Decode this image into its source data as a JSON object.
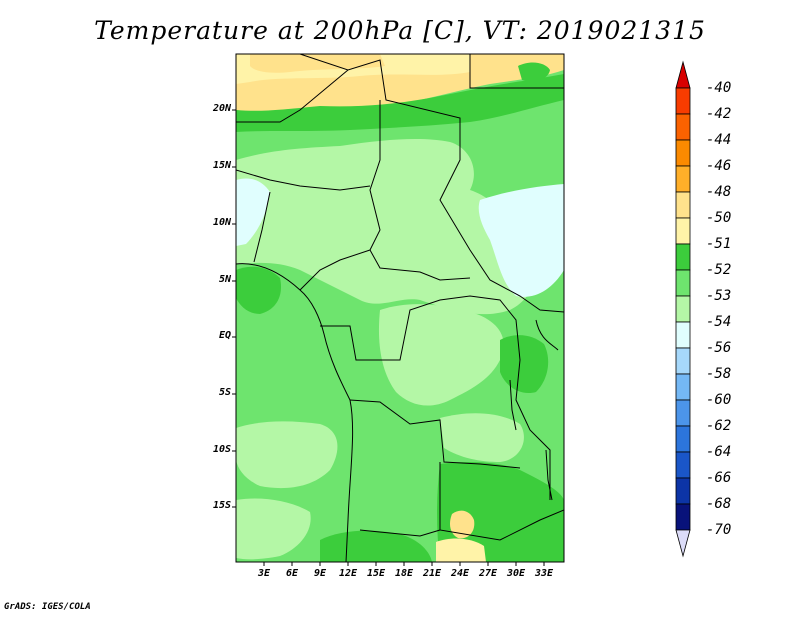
{
  "title": "Temperature at 200hPa [C], VT: 2019021315",
  "credit": "GrADS: IGES/COLA",
  "map": {
    "lat_labels": [
      "20N",
      "15N",
      "10N",
      "5N",
      "EQ",
      "5S",
      "10S",
      "15S"
    ],
    "lon_labels": [
      "3E",
      "6E",
      "9E",
      "12E",
      "15E",
      "18E",
      "21E",
      "24E",
      "27E",
      "30E",
      "33E"
    ],
    "field_colors": {
      "orange_light": "#ffe28c",
      "yellow_light": "#fff3a8",
      "green_dark": "#3ccd3c",
      "green_mid": "#6ee46e",
      "green_light": "#b4f7a6",
      "cyan_pale": "#e0fefe"
    }
  },
  "colorbar": {
    "labels": [
      "-40",
      "-42",
      "-44",
      "-46",
      "-48",
      "-50",
      "-51",
      "-52",
      "-53",
      "-54",
      "-56",
      "-58",
      "-60",
      "-62",
      "-64",
      "-66",
      "-68",
      "-70"
    ],
    "colors": [
      "#d80000",
      "#f83c00",
      "#fb6200",
      "#fb8a00",
      "#ffaf29",
      "#ffe28c",
      "#fff3a8",
      "#3ccd3c",
      "#6ee46e",
      "#b4f7a6",
      "#e0fefe",
      "#a6d8fb",
      "#74b8f5",
      "#4c95ea",
      "#2c75dc",
      "#1a56c8",
      "#0c34a6",
      "#08127a",
      "#dcdcf8"
    ]
  }
}
